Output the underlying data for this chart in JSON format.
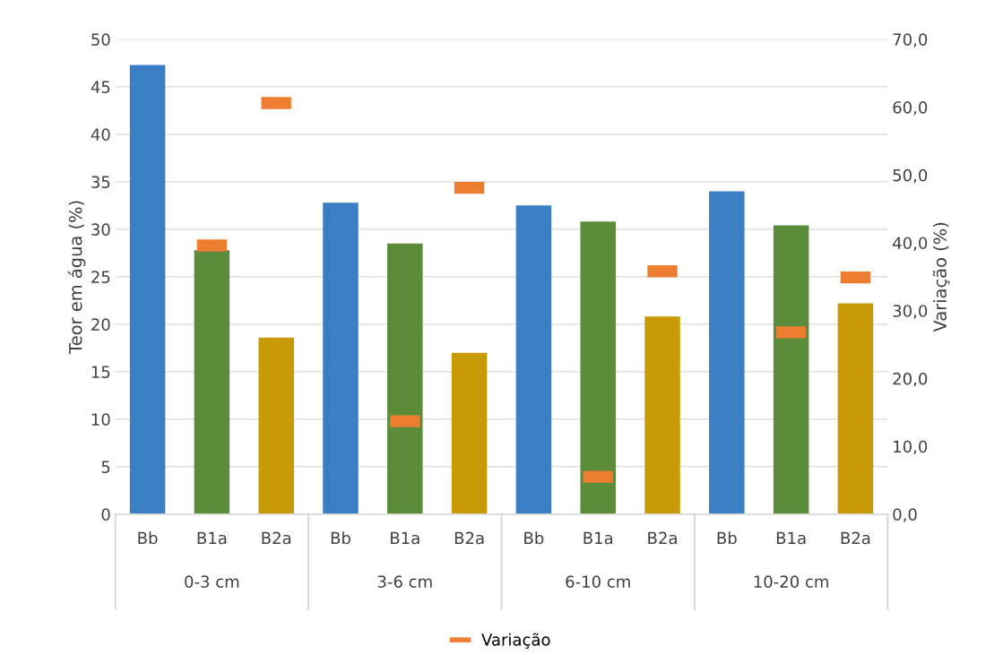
{
  "chart_data": {
    "type": "bar",
    "ylabel": "Teor em água (%)",
    "y2label": "Variação (%)",
    "categories": [
      "Bb",
      "B1a",
      "B2a",
      "Bb",
      "B1a",
      "B2a",
      "Bb",
      "B1a",
      "B2a",
      "Bb",
      "B1a",
      "B2a"
    ],
    "annotations": [
      "0-3 cm",
      "3-6 cm",
      "6-10 cm",
      "10-20 cm"
    ],
    "series": [
      {
        "colors": [
          "#3a7fc4",
          "#5b8c3a",
          "#c89a06",
          "#3a7fc4",
          "#5b8c3a",
          "#c89a06",
          "#3a7fc4",
          "#5b8c3a",
          "#c89a06",
          "#3a7fc4",
          "#5b8c3a",
          "#c89a06"
        ],
        "values": [
          47.3,
          27.8,
          18.6,
          32.8,
          28.5,
          17.0,
          32.5,
          30.8,
          20.8,
          34.0,
          30.4,
          22.2
        ]
      },
      {
        "type": "scatter",
        "name": "Variação",
        "axis": "y2",
        "color": "#ed7d31",
        "values": [
          null,
          39.6,
          60.6,
          null,
          13.7,
          48.1,
          null,
          5.5,
          35.8,
          null,
          26.8,
          34.9
        ]
      }
    ],
    "ylim": [
      0,
      50
    ],
    "yticks": [
      0,
      5,
      10,
      15,
      20,
      25,
      30,
      35,
      40,
      45,
      50
    ],
    "y2lim": [
      0,
      70
    ],
    "y2ticks": [
      {
        "value": 0,
        "label": "0,0"
      },
      {
        "value": 10,
        "label": "10,0"
      },
      {
        "value": 20,
        "label": "20,0"
      },
      {
        "value": 30,
        "label": "30,0"
      },
      {
        "value": 40,
        "label": "40,0"
      },
      {
        "value": 50,
        "label": "50,0"
      },
      {
        "value": 60,
        "label": "60,0"
      },
      {
        "value": 70,
        "label": "70,0"
      }
    ],
    "grid": "y",
    "legend": "bottom"
  }
}
